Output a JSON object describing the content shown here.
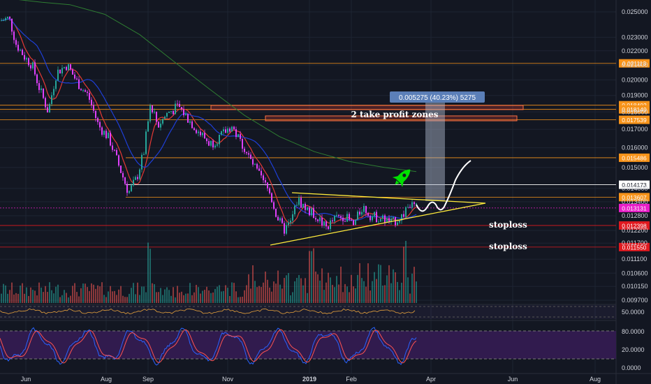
{
  "chart_data": {
    "type": "candlestick",
    "price_axis": {
      "ticks": [
        "0.025000",
        "0.023000",
        "0.022000",
        "0.021000",
        "0.020000",
        "0.019000",
        "0.018000",
        "0.017000",
        "0.016000",
        "0.015000",
        "0.014000",
        "0.013400",
        "0.012800",
        "0.012200",
        "0.011700",
        "0.011100",
        "0.010600",
        "0.010150",
        "0.009700"
      ],
      "tick_values": [
        0.025,
        0.023,
        0.022,
        0.021,
        0.02,
        0.019,
        0.018,
        0.017,
        0.016,
        0.015,
        0.014,
        0.0134,
        0.0128,
        0.0122,
        0.0117,
        0.0111,
        0.0106,
        0.01015,
        0.0097
      ],
      "scale": "log"
    },
    "rsi_axis": {
      "ticks": [
        "50.0000"
      ]
    },
    "stoch_axis": {
      "ticks": [
        "80.0000",
        "20.0000",
        "0.0000"
      ]
    },
    "x_axis": {
      "labels": [
        "Jun",
        "Aug",
        "Sep",
        "Nov",
        "2019",
        "Feb",
        "Apr",
        "Jun",
        "Aug"
      ]
    },
    "level_lines": [
      {
        "value": 0.021113,
        "label": "0.021113",
        "color": "#f7931a"
      },
      {
        "value": 0.018402,
        "label": "0.018402",
        "color": "#f7931a"
      },
      {
        "value": 0.018149,
        "label": "0.018149",
        "color": "#f7931a"
      },
      {
        "value": 0.017539,
        "label": "0.017539",
        "color": "#f7931a"
      },
      {
        "value": 0.015486,
        "label": "0.015486",
        "color": "#f7931a"
      },
      {
        "value": 0.014173,
        "label": "0.014173",
        "color": "#ffffff"
      },
      {
        "value": 0.013607,
        "label": "0.013607",
        "color": "#f7931a"
      },
      {
        "value": 0.013131,
        "label": "0.013131",
        "color": "#e91ec8"
      },
      {
        "value": 0.012398,
        "label": "0.012398",
        "color": "#e0191f"
      },
      {
        "value": 0.01155,
        "label": "0.011550",
        "color": "#e0191f"
      }
    ],
    "annotations": {
      "measure_label": "0.005275 (40.23%) 5275",
      "take_profit": "2 take profit zones",
      "stoploss_1": "stoploss",
      "stoploss_2": "stoploss"
    },
    "colors": {
      "background": "#131722",
      "up_candle": "#26a69a",
      "down_candle": "#e040fb",
      "ma_fast": "#e53935",
      "ma_mid": "#1e3fd8",
      "ma_slow": "#2e7d32",
      "triangle": "#ffeb3b",
      "stoch_k": "#2962ff",
      "stoch_d": "#ff5252",
      "stoch_band": "#311b4e"
    }
  }
}
